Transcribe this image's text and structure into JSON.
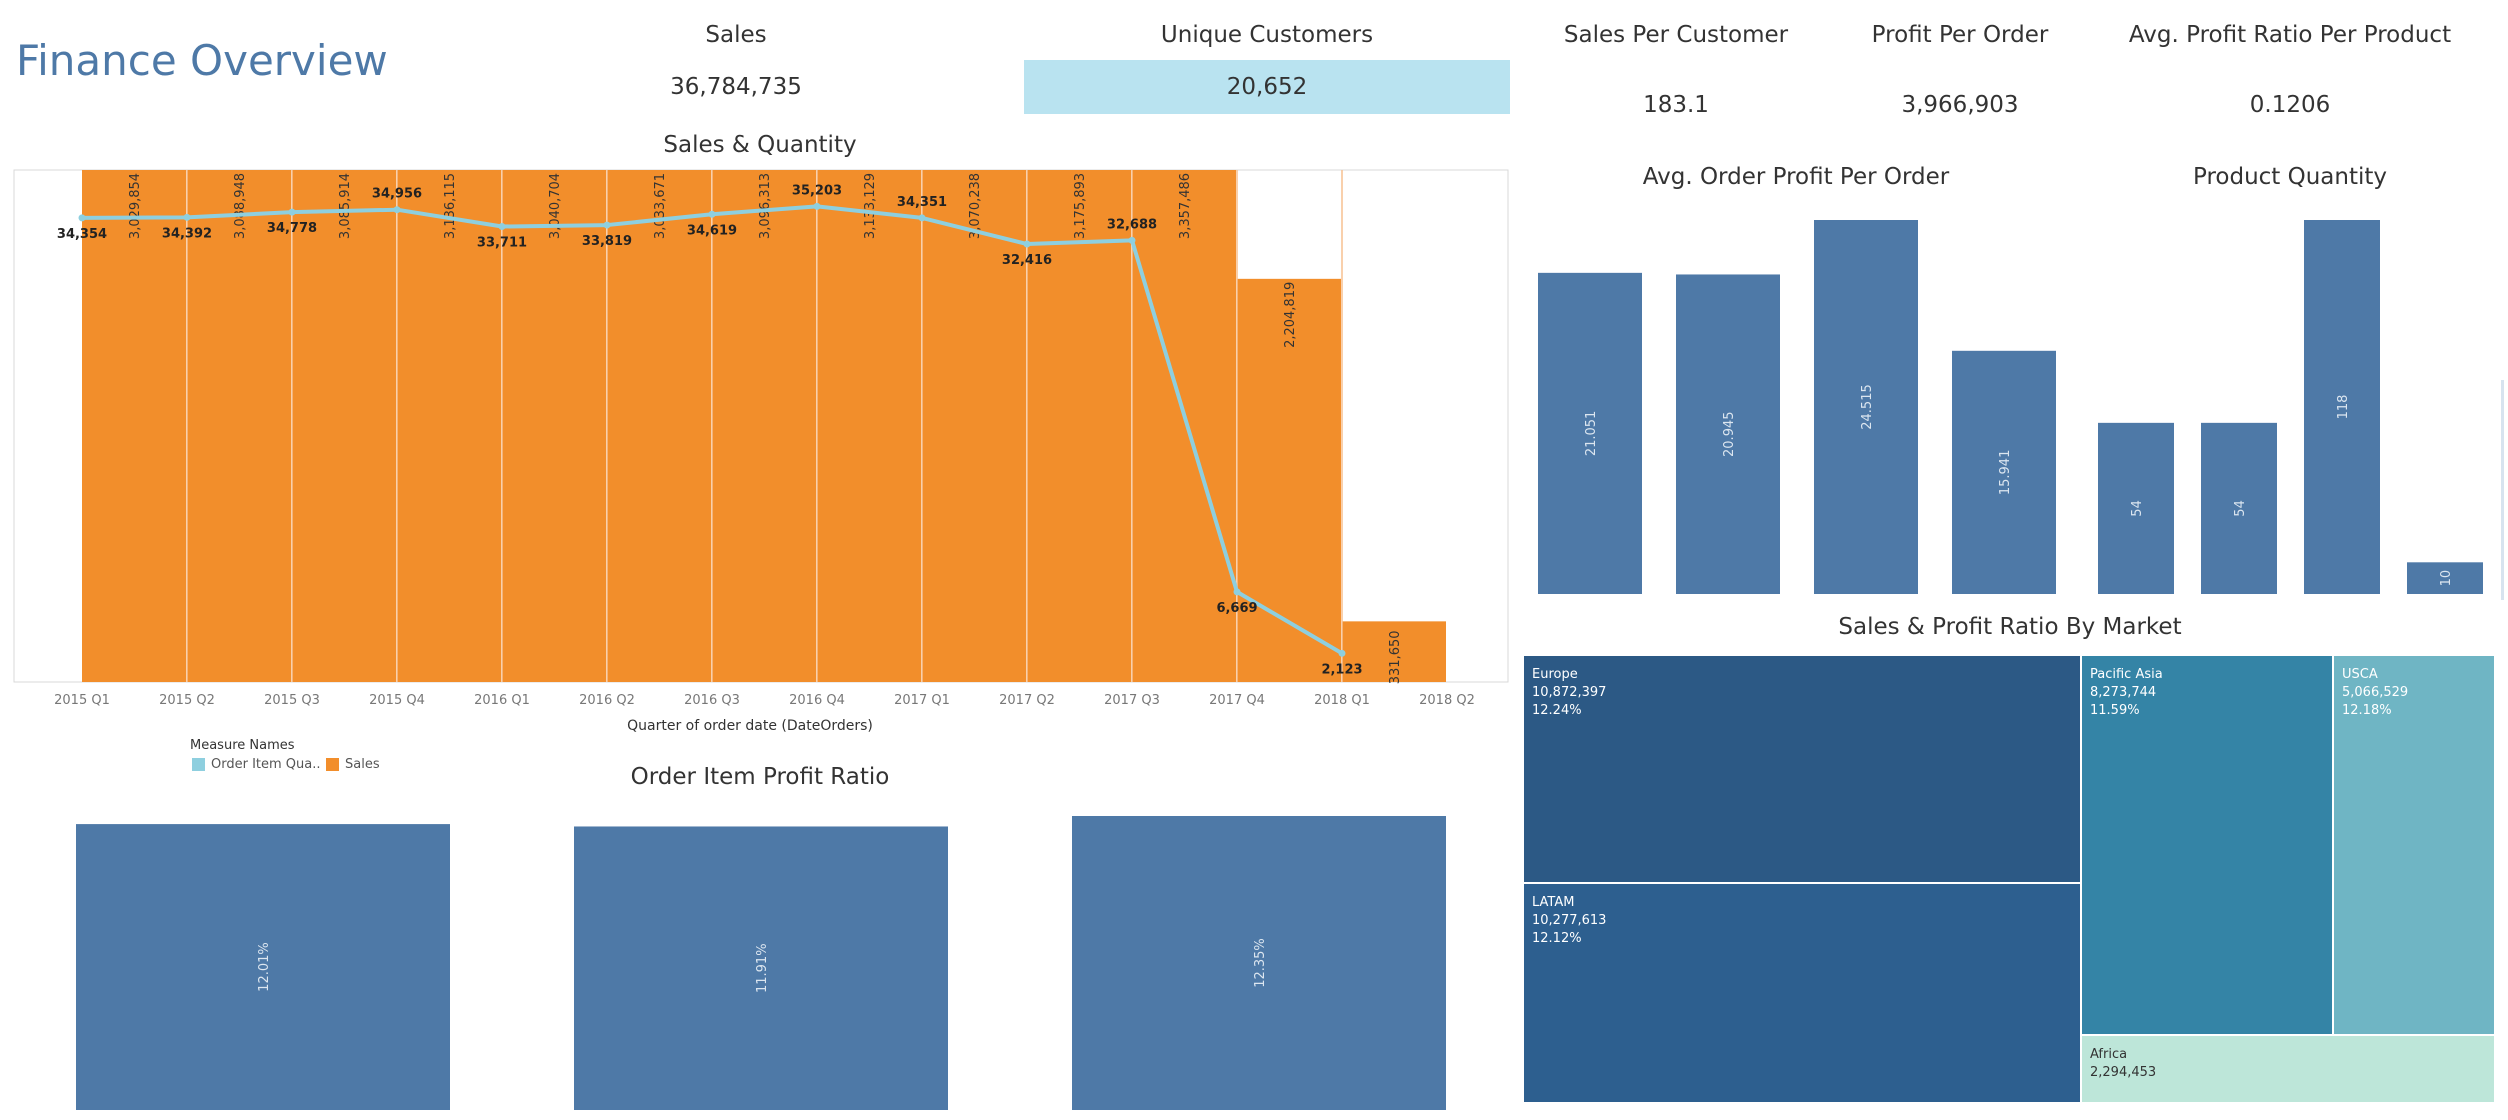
{
  "dashboard": {
    "title": "Finance Overview"
  },
  "kpis": [
    {
      "label": "Sales",
      "value": "36,784,735",
      "highlighted": false
    },
    {
      "label": "Unique Customers",
      "value": "20,652",
      "highlighted": true
    },
    {
      "label": "Sales Per Customer",
      "value": "183.1",
      "highlighted": false
    },
    {
      "label": "Profit Per Order",
      "value": "3,966,903",
      "highlighted": false
    },
    {
      "label": "Avg. Profit Ratio Per Product",
      "value": "0.1206",
      "highlighted": false
    }
  ],
  "colors": {
    "sales_bar": "#f28e2b",
    "quantity_line": "#8ecfdf",
    "blue_bar": "#4e79a7",
    "kpi_highlight": "#b9e3f0"
  },
  "legend": {
    "title": "Measure Names",
    "items": [
      {
        "label": "Order Item Qua..",
        "color": "#8ecfdf"
      },
      {
        "label": "Sales",
        "color": "#f28e2b"
      }
    ]
  },
  "chart_data": [
    {
      "type": "bar+line",
      "title": "Sales & Quantity",
      "xlabel": "Quarter of order date (DateOrders)",
      "categories": [
        "2015 Q1",
        "2015 Q2",
        "2015 Q3",
        "2015 Q4",
        "2016 Q1",
        "2016 Q2",
        "2016 Q3",
        "2016 Q4",
        "2017 Q1",
        "2017 Q2",
        "2017 Q3",
        "2017 Q4",
        "2018 Q1",
        "2018 Q2"
      ],
      "series": [
        {
          "name": "Sales",
          "chart": "bar",
          "values": [
            3029854,
            3088948,
            3085914,
            3136115,
            3040704,
            3033671,
            3096313,
            3133129,
            3070238,
            3175893,
            3357486,
            2204819,
            331650,
            null
          ],
          "labels": [
            "3,029,854",
            "3,088,948",
            "3,085,914",
            "3,136,115",
            "3,040,704",
            "3,033,671",
            "3,096,313",
            "3,133,129",
            "3,070,238",
            "3,175,893",
            "3,357,486",
            "2,204,819",
            "331,650",
            ""
          ]
        },
        {
          "name": "Order Item Qua..",
          "chart": "line",
          "values": [
            34354,
            34392,
            34778,
            34956,
            33711,
            33819,
            34619,
            35203,
            34351,
            32416,
            32688,
            6669,
            2123,
            null
          ],
          "labels": [
            "34,354",
            "34,392",
            "34,778",
            "34,956",
            "33,711",
            "33,819",
            "34,619",
            "35,203",
            "34,351",
            "32,416",
            "32,688",
            "6,669",
            "2,123",
            ""
          ]
        }
      ]
    },
    {
      "type": "bar",
      "title": "Avg. Order Profit Per Order",
      "values": [
        21.051,
        20.945,
        24.515,
        15.941
      ],
      "labels": [
        "21.051",
        "20.945",
        "24.515",
        "15.941"
      ]
    },
    {
      "type": "bar",
      "title": "Product Quantity",
      "values": [
        54,
        54,
        118,
        10
      ],
      "labels": [
        "54",
        "54",
        "118",
        "10"
      ]
    },
    {
      "type": "bar",
      "title": "Order Item Profit Ratio",
      "values": [
        12.01,
        11.91,
        12.35
      ],
      "labels": [
        "12.01%",
        "11.91%",
        "12.35%"
      ]
    },
    {
      "type": "treemap",
      "title": "Sales & Profit Ratio By Market",
      "items": [
        {
          "name": "Europe",
          "sales": "10,872,397",
          "profit_ratio": "12.24%",
          "color": "#2c5985"
        },
        {
          "name": "LATAM",
          "sales": "10,277,613",
          "profit_ratio": "12.12%",
          "color": "#2d5f8f"
        },
        {
          "name": "Pacific Asia",
          "sales": "8,273,744",
          "profit_ratio": "11.59%",
          "color": "#3484a6"
        },
        {
          "name": "USCA",
          "sales": "5,066,529",
          "profit_ratio": "12.18%",
          "color": "#6fb5c4"
        },
        {
          "name": "Africa",
          "sales": "2,294,453",
          "profit_ratio": "",
          "color": "#bde6d9"
        }
      ]
    }
  ]
}
